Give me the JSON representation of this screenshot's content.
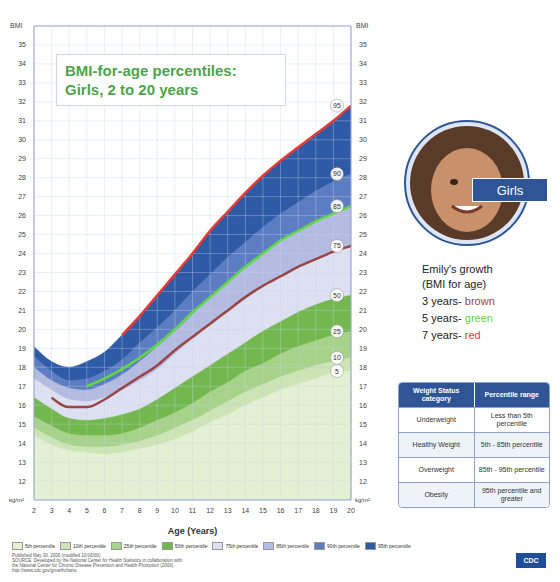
{
  "chart_data": {
    "type": "line",
    "title": "BMI-for-age percentiles:",
    "subtitle": "Girls, 2 to 20 years",
    "x_label": "Age (Years)",
    "y_label": "BMI",
    "y_unit": "kg/m²",
    "x": [
      2,
      3,
      4,
      5,
      6,
      7,
      8,
      9,
      10,
      11,
      12,
      13,
      14,
      15,
      16,
      17,
      18,
      19,
      20
    ],
    "xlim": [
      2,
      20
    ],
    "xticks": [
      2,
      3,
      4,
      5,
      6,
      7,
      8,
      9,
      10,
      11,
      12,
      13,
      14,
      15,
      16,
      17,
      18,
      19,
      20
    ],
    "ylim": [
      11,
      36
    ],
    "yticks": [
      12,
      13,
      14,
      15,
      16,
      17,
      18,
      19,
      20,
      21,
      22,
      23,
      24,
      25,
      26,
      27,
      28,
      29,
      30,
      31,
      32,
      33,
      34,
      35
    ],
    "grid": true,
    "legend": "bottom",
    "series": [
      {
        "name": "5th percentile",
        "type": "area",
        "color": "#e4f0d3",
        "end_label": "5",
        "values": [
          14.4,
          13.9,
          13.6,
          13.5,
          13.4,
          13.5,
          13.7,
          13.9,
          14.2,
          14.6,
          15.1,
          15.5,
          16.0,
          16.4,
          16.8,
          17.1,
          17.4,
          17.7,
          17.8
        ]
      },
      {
        "name": "10th percentile",
        "type": "area",
        "color": "#cde4b4",
        "end_label": "10",
        "values": [
          14.8,
          14.3,
          13.9,
          13.8,
          13.8,
          13.9,
          14.1,
          14.4,
          14.8,
          15.2,
          15.7,
          16.2,
          16.7,
          17.1,
          17.5,
          17.8,
          18.1,
          18.3,
          18.5
        ]
      },
      {
        "name": "25th percentile",
        "type": "area",
        "color": "#a7d28a",
        "end_label": "25",
        "values": [
          15.4,
          14.9,
          14.5,
          14.4,
          14.4,
          14.5,
          14.8,
          15.2,
          15.6,
          16.1,
          16.7,
          17.2,
          17.8,
          18.2,
          18.7,
          19.1,
          19.4,
          19.7,
          19.9
        ]
      },
      {
        "name": "50th percentile",
        "type": "area",
        "color": "#72b84e",
        "end_label": "50",
        "values": [
          16.4,
          15.8,
          15.3,
          15.2,
          15.3,
          15.5,
          15.8,
          16.3,
          16.9,
          17.5,
          18.1,
          18.7,
          19.3,
          19.9,
          20.4,
          20.9,
          21.3,
          21.6,
          21.8
        ]
      },
      {
        "name": "75th percentile",
        "type": "area",
        "color": "#dde0f1",
        "end_label": "75",
        "values": [
          17.4,
          16.8,
          16.3,
          16.2,
          16.4,
          16.8,
          17.3,
          17.9,
          18.7,
          19.5,
          20.2,
          20.9,
          21.6,
          22.2,
          22.8,
          23.3,
          23.7,
          24.1,
          24.4
        ]
      },
      {
        "name": "85th percentile",
        "type": "area",
        "color": "#b3bbe0",
        "end_label": "85",
        "values": [
          18.0,
          17.3,
          16.9,
          16.8,
          17.1,
          17.6,
          18.3,
          19.1,
          19.9,
          20.8,
          21.7,
          22.5,
          23.3,
          24.0,
          24.7,
          25.2,
          25.7,
          26.1,
          26.5
        ]
      },
      {
        "name": "90th percentile",
        "type": "area",
        "color": "#5d7dc2",
        "end_label": "90",
        "values": [
          18.6,
          17.8,
          17.3,
          17.4,
          17.8,
          18.4,
          19.3,
          20.1,
          21.0,
          22.0,
          22.9,
          23.8,
          24.6,
          25.4,
          26.1,
          26.7,
          27.3,
          27.8,
          28.2
        ]
      },
      {
        "name": "95th percentile",
        "type": "area",
        "color": "#2e5aa6",
        "end_label": "95",
        "values": [
          19.1,
          18.3,
          18.0,
          18.3,
          18.8,
          19.7,
          20.7,
          21.8,
          22.9,
          24.0,
          25.2,
          26.2,
          27.2,
          28.1,
          28.9,
          29.6,
          30.3,
          31.0,
          31.8
        ]
      },
      {
        "name": "3 years-",
        "color_word": "brown",
        "type": "line",
        "color": "#9a4646",
        "values": [
          null,
          16.4,
          15.9,
          15.9,
          16.3,
          16.9,
          17.5,
          18.1,
          18.9,
          19.6,
          20.3,
          21.0,
          21.7,
          22.3,
          22.8,
          23.3,
          23.7,
          24.1,
          24.4
        ]
      },
      {
        "name": "5 years-",
        "color_word": "green",
        "type": "line",
        "color": "#5fd843",
        "values": [
          null,
          null,
          null,
          17.0,
          17.4,
          17.9,
          18.5,
          19.2,
          20.0,
          20.9,
          21.7,
          22.5,
          23.3,
          24.0,
          24.7,
          25.2,
          25.7,
          26.1,
          26.5
        ]
      },
      {
        "name": "7 years-",
        "color_word": "red",
        "type": "line",
        "color": "#e63b35",
        "values": [
          null,
          null,
          null,
          null,
          null,
          19.7,
          20.7,
          21.8,
          22.9,
          24.0,
          25.2,
          26.2,
          27.2,
          28.1,
          28.9,
          29.6,
          30.3,
          31.0,
          31.8
        ]
      }
    ]
  },
  "side_panel": {
    "photo_tag": "Girls",
    "growth_note": {
      "title": "Emily's growth",
      "subtitle": "(BMI for age)"
    },
    "table": {
      "header": [
        "Weight Status category",
        "Percentile range"
      ],
      "rows": [
        [
          "Underweight",
          "Less than 5th percentile"
        ],
        [
          "Healthy Weight",
          "5th - 85th percentile"
        ],
        [
          "Overweight",
          "85th - 95th percentile"
        ],
        [
          "Obesity",
          "95th percentile and greater"
        ]
      ]
    }
  },
  "footer": {
    "source_lines": [
      "Published May 30, 2000 (modified 10/16/00).",
      "SOURCE: Developed by the National Center for Health Statistics in collaboration with",
      "the National Center for Chronic Disease Prevention and Health Promotion (2000).",
      "http://www.cdc.gov/growthcharts"
    ],
    "logo": "CDC"
  }
}
